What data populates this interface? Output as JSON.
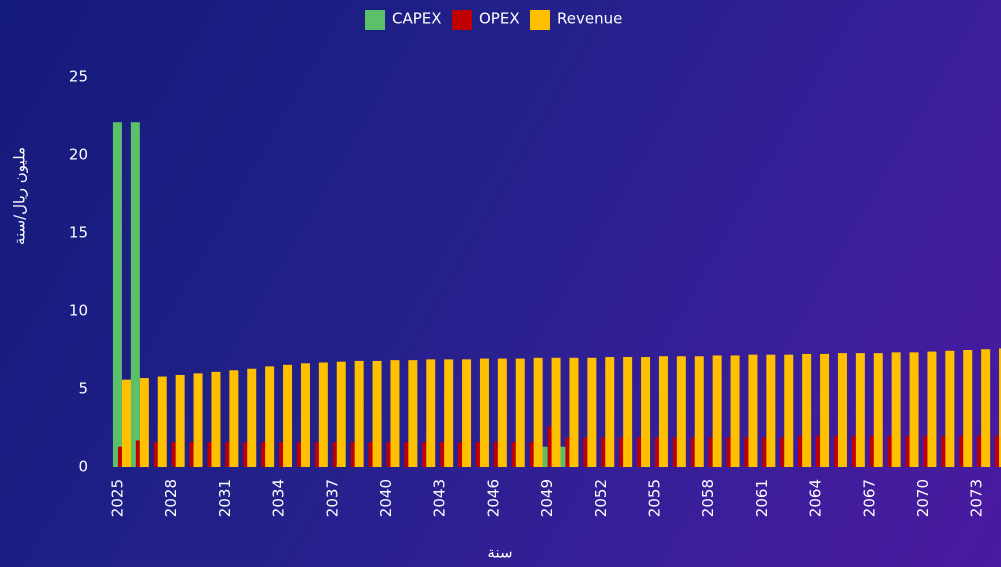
{
  "chart_data": {
    "type": "bar",
    "x_label": "سنة",
    "y_label": "مليون ريال/سنة",
    "x": [
      2025,
      2026,
      2027,
      2028,
      2029,
      2030,
      2031,
      2032,
      2033,
      2034,
      2035,
      2036,
      2037,
      2038,
      2039,
      2040,
      2041,
      2042,
      2043,
      2044,
      2045,
      2046,
      2047,
      2048,
      2049,
      2050,
      2051,
      2052,
      2053,
      2054,
      2055,
      2056,
      2057,
      2058,
      2059,
      2060,
      2061,
      2062,
      2063,
      2064,
      2065,
      2066,
      2067,
      2068,
      2069,
      2070,
      2071,
      2072,
      2073,
      2074
    ],
    "xlim": [
      2024.5,
      2074.5
    ],
    "xticks": [
      2025,
      2028,
      2031,
      2034,
      2037,
      2040,
      2043,
      2046,
      2049,
      2052,
      2055,
      2058,
      2061,
      2064,
      2067,
      2070,
      2073
    ],
    "ylim": [
      0,
      25
    ],
    "yticks": [
      0,
      5,
      10,
      15,
      20,
      25
    ],
    "grid": false,
    "legend": "top",
    "series": [
      {
        "name": "CAPEX",
        "color": "#5cbf6a",
        "values": [
          22.1,
          22.1,
          0,
          0,
          0,
          0,
          0,
          0,
          0,
          0,
          0,
          0,
          0,
          0,
          0,
          0,
          0,
          0,
          0,
          0,
          0,
          0,
          0,
          0,
          1.3,
          1.3,
          0,
          0,
          0,
          0,
          0,
          0,
          0,
          0,
          0,
          0,
          0,
          0,
          0,
          0,
          0,
          0,
          0,
          0,
          0,
          0,
          0,
          0,
          0,
          0
        ]
      },
      {
        "name": "OPEX",
        "color": "#c00000",
        "values": [
          1.3,
          1.7,
          1.6,
          1.6,
          1.6,
          1.6,
          1.6,
          1.6,
          1.6,
          1.6,
          1.6,
          1.6,
          1.6,
          1.6,
          1.6,
          1.6,
          1.6,
          1.6,
          1.6,
          1.6,
          1.6,
          1.6,
          1.6,
          1.6,
          2.6,
          1.9,
          1.9,
          1.9,
          1.9,
          1.9,
          1.9,
          1.9,
          1.9,
          1.9,
          1.9,
          1.9,
          1.9,
          1.9,
          2.0,
          2.0,
          2.0,
          2.0,
          2.0,
          2.0,
          2.0,
          2.0,
          2.0,
          2.0,
          2.0,
          2.0
        ]
      },
      {
        "name": "Revenue",
        "color": "#ffc000",
        "values": [
          5.6,
          5.7,
          5.8,
          5.9,
          6.0,
          6.1,
          6.2,
          6.3,
          6.45,
          6.55,
          6.65,
          6.7,
          6.75,
          6.8,
          6.8,
          6.85,
          6.85,
          6.9,
          6.9,
          6.9,
          6.95,
          6.95,
          6.95,
          7.0,
          7.0,
          7.0,
          7.0,
          7.05,
          7.05,
          7.05,
          7.1,
          7.1,
          7.1,
          7.15,
          7.15,
          7.2,
          7.2,
          7.2,
          7.25,
          7.25,
          7.3,
          7.3,
          7.3,
          7.35,
          7.35,
          7.4,
          7.45,
          7.5,
          7.55,
          7.6
        ]
      }
    ]
  }
}
